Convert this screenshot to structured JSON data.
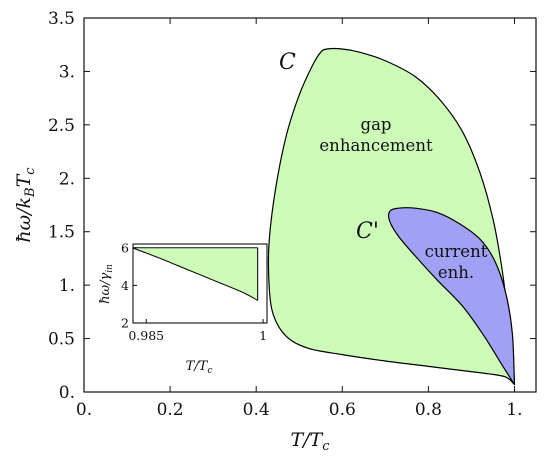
{
  "chart_data": {
    "type": "area",
    "xlabel": "T/T_c",
    "ylabel": "ħω/k_BT_c",
    "xlim": [
      0.0,
      1.05
    ],
    "ylim": [
      0.0,
      3.5
    ],
    "x_ticks": [
      0.0,
      0.2,
      0.4,
      0.6,
      0.8,
      1.0
    ],
    "x_tick_labels": [
      "0.",
      "0.2",
      "0.4",
      "0.6",
      "0.8",
      "1."
    ],
    "y_ticks": [
      0.0,
      0.5,
      1.0,
      1.5,
      2.0,
      2.5,
      3.0,
      3.5
    ],
    "y_tick_labels": [
      "0.",
      "0.5",
      "1.",
      "1.5",
      "2.",
      "2.5",
      "3.",
      "3.5"
    ],
    "grid": false,
    "regions": [
      {
        "curve_label": "C",
        "name": "gap enhancement",
        "label_lines": [
          "gap",
          "enhancement"
        ],
        "fill": "#ccfcb8",
        "stroke": "#000000",
        "boundary": [
          [
            1.0,
            0.07
          ],
          [
            0.995,
            0.38
          ],
          [
            0.985,
            0.72
          ],
          [
            0.97,
            1.18
          ],
          [
            0.95,
            1.62
          ],
          [
            0.92,
            2.05
          ],
          [
            0.88,
            2.43
          ],
          [
            0.83,
            2.72
          ],
          [
            0.77,
            2.95
          ],
          [
            0.7,
            3.1
          ],
          [
            0.64,
            3.18
          ],
          [
            0.6,
            3.21
          ],
          [
            0.565,
            3.21
          ],
          [
            0.55,
            3.18
          ],
          [
            0.53,
            3.05
          ],
          [
            0.5,
            2.78
          ],
          [
            0.47,
            2.4
          ],
          [
            0.445,
            1.9
          ],
          [
            0.43,
            1.4
          ],
          [
            0.43,
            1.0
          ],
          [
            0.44,
            0.72
          ],
          [
            0.47,
            0.52
          ],
          [
            0.52,
            0.41
          ],
          [
            0.6,
            0.35
          ],
          [
            0.7,
            0.29
          ],
          [
            0.8,
            0.24
          ],
          [
            0.88,
            0.2
          ],
          [
            0.94,
            0.17
          ],
          [
            0.98,
            0.14
          ],
          [
            1.0,
            0.07
          ]
        ]
      },
      {
        "curve_label": "C'",
        "name": "current enh.",
        "label_lines": [
          "current",
          "enh."
        ],
        "fill": "#a0a0f4",
        "stroke": "#000000",
        "boundary": [
          [
            1.0,
            0.07
          ],
          [
            0.97,
            0.26
          ],
          [
            0.93,
            0.52
          ],
          [
            0.88,
            0.8
          ],
          [
            0.82,
            1.05
          ],
          [
            0.77,
            1.27
          ],
          [
            0.73,
            1.46
          ],
          [
            0.71,
            1.6
          ],
          [
            0.71,
            1.69
          ],
          [
            0.73,
            1.72
          ],
          [
            0.77,
            1.72
          ],
          [
            0.82,
            1.68
          ],
          [
            0.87,
            1.58
          ],
          [
            0.92,
            1.43
          ],
          [
            0.955,
            1.22
          ],
          [
            0.98,
            0.92
          ],
          [
            0.995,
            0.55
          ],
          [
            1.0,
            0.07
          ]
        ]
      }
    ],
    "inset": {
      "type": "area",
      "xlabel": "T/T_c",
      "ylabel": "ħω/γ_in",
      "xlim": [
        0.9833,
        1.0005
      ],
      "ylim": [
        2.0,
        6.2
      ],
      "x_ticks": [
        0.985,
        1.0
      ],
      "x_tick_labels": [
        "0.985",
        "1"
      ],
      "y_ticks": [
        2,
        4,
        6
      ],
      "y_tick_labels": [
        "2",
        "4",
        "6"
      ],
      "fill": "#ccfcb8",
      "lower_curve": [
        [
          0.9833,
          5.98
        ],
        [
          0.985,
          5.72
        ],
        [
          0.987,
          5.4
        ],
        [
          0.989,
          5.06
        ],
        [
          0.991,
          4.72
        ],
        [
          0.993,
          4.38
        ],
        [
          0.995,
          4.04
        ],
        [
          0.997,
          3.7
        ],
        [
          0.998,
          3.5
        ],
        [
          0.9988,
          3.32
        ],
        [
          0.9993,
          3.2
        ]
      ],
      "upper_edge": 6.0
    }
  }
}
